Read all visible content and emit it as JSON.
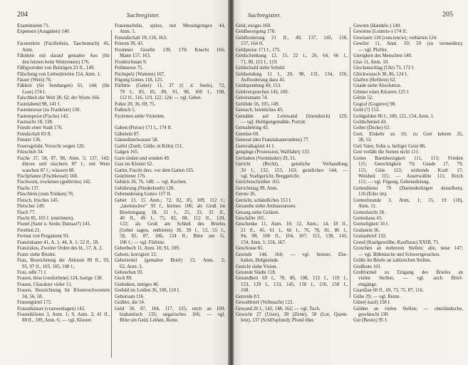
{
  "left_page": {
    "page_number": "204",
    "running_head": "Sachregister.",
    "columns": [
      [
        {
          "t": "Examinieren 71."
        },
        {
          "t": "Expensen (Ausgaben) 140."
        },
        {
          "t": "",
          "b": 1
        },
        {
          "t": "Facenetlein (Facilletlein, Taschentuch) 45,"
        },
        {
          "t": "Anm.",
          "i": 1
        },
        {
          "t": "Fähnlein mit darauf gemalter Sau (für"
        },
        {
          "t": "den letzten beim Wettrennen) 176.",
          "i": 1
        },
        {
          "t": "Fälligwerden von Beiträgen 23 ff., 149."
        },
        {
          "t": "Fälschung von Liebesbriefen 154, Anm. 1."
        },
        {
          "t": "Fässer (Wein) 76."
        },
        {
          "t": "Fäßlein (für Sendungen) 61, 144; (für"
        },
        {
          "t": "Lose) 174 f.",
          "i": 1
        },
        {
          "t": "Falschheit der Welt 38, 62; der Worte 166."
        },
        {
          "t": "Fastelabend 98, 141 f."
        },
        {
          "t": "Fastenmesse (zu Frankfurt) 130."
        },
        {
          "t": "Fastenspeise (Fische) 142."
        },
        {
          "t": "Fastnacht 18, 138."
        },
        {
          "t": "Feinde einer Stadt 176."
        },
        {
          "t": "Feindschaft 83 ff."
        },
        {
          "t": "Fenster 136."
        },
        {
          "t": "Feuersgefahr, Vorsicht wegen 126."
        },
        {
          "t": "Filzschuh 34."
        },
        {
          "t": "Fische 37, 58, 87, 98, Anm. 5; 137, 142;"
        },
        {
          "t": "dörren und räuchern 87 f.; mit Wein",
          "i": 1
        },
        {
          "t": "waschen 87 f.; wässern 88.",
          "i": 1
        },
        {
          "t": "Fischpfanne (Fischkessel) 168."
        },
        {
          "t": "Fischwerk, trockenes (gedörrtes) 142."
        },
        {
          "t": "Flachs 137."
        },
        {
          "t": "Fläschlein (zum Trinken) 76."
        },
        {
          "t": "Fleisch, frisches 145."
        },
        {
          "t": "Fleischer 149."
        },
        {
          "t": "Fluch 77."
        },
        {
          "t": "Flucht 85, 165 f. (entrinnen)."
        },
        {
          "t": "Flunel (Samt u. Seide; Damast?) 141."
        },
        {
          "t": "Forellen 21."
        },
        {
          "t": "Format von Pergament 93."
        },
        {
          "t": "Franziskaner 41, A. 1; 44, A. 1; 52 ff., 59."
        },
        {
          "t": "Franziskus, Zweiter Orden des hl., 57, A. 2."
        },
        {
          "t": "Frater siehe Bruder."
        },
        {
          "t": "Frau, Bezeichnung der Äbtissin 89 ff., 93,"
        },
        {
          "t": "95, 97 ff., 103, 105, 108 f.;",
          "i": 1
        },
        {
          "t": "Frau, edle 71 f."
        },
        {
          "t": "Frauen, böse (verdorbene) 124, lustige 138."
        },
        {
          "t": "Frauen, Charakter vieler 51."
        },
        {
          "t": "Frauen, Bezeichnung für Klosterschwestern"
        },
        {
          "t": "34, 56, 58.",
          "i": 1
        },
        {
          "t": "Frauengürtel 175."
        },
        {
          "t": "Frauenhäuser (vrauwenlagen) 142."
        },
        {
          "t": "Frauenklöster 3, Anm. 1; 9, Anm. 2; 41 ff.,"
        },
        {
          "t": "88 ff., 109, Anm. 6; — vgl. Kloster.",
          "i": 1
        }
      ],
      [
        {
          "t": "Frauenschuhe, spitze, mit Messingringen 44,"
        },
        {
          "t": "Anm. 1.",
          "i": 1
        },
        {
          "t": "Freundschaft 19, 116, 163."
        },
        {
          "t": "Frieren 39, 43."
        },
        {
          "t": "Frommer Geselle 139, 170; Knecht 166;"
        },
        {
          "t": "Mann 157, 163.",
          "i": 1
        },
        {
          "t": "Fronleichnam 9."
        },
        {
          "t": "Frühmesse 75."
        },
        {
          "t": "Fuchspelz (Wamme) 167."
        },
        {
          "t": "Fügung Gottes 118, 125."
        },
        {
          "t": "Fürbitte (Gebet) 11, 37 (f. d. Seele), 72,"
        },
        {
          "t": "79 f., 83, 85, 89, 91, 98, 100 f., 108,",
          "i": 1
        },
        {
          "t": "112 ff., 116, 119, 122, 124; — vgl. Gebet.",
          "i": 1
        },
        {
          "t": "Fuhre 20, 36, 69, 75."
        },
        {
          "t": "Fußtuch 5."
        },
        {
          "t": "Fyoletten siehe Violetten."
        },
        {
          "t": "",
          "b": 1
        },
        {
          "t": "Gaben (Preise) 171 f., 174 ff."
        },
        {
          "t": "Gäbelein 87."
        },
        {
          "t": "Gänsedistelwasser 58."
        },
        {
          "t": "Gaffel (Zunft, Gilde; in Köln) 151."
        },
        {
          "t": "Galgen 165."
        },
        {
          "t": "Garn sieden und winden 49."
        },
        {
          "t": "Gast im Kloster 62."
        },
        {
          "t": "Gattin, Furcht ders. vor dem Gatten 165."
        },
        {
          "t": "Geächteter 176."
        },
        {
          "t": "Gebäck 26, 76, 148; — vgl. Kuchen."
        },
        {
          "t": "Gebährung (Niederkunft) 128."
        },
        {
          "t": "Gebenedeiung Gottes 117 ff."
        },
        {
          "t": "Gebet 13, 15 Anm.; 72, 82, 85, 109, 112 f.;"
        },
        {
          "t": "„lateinisches“ 93 f., kleines 106; als Gruß im",
          "i": 1
        },
        {
          "t": "Briefeingang 18, 21 f., 25, 33, 35 ff.,",
          "i": 1
        },
        {
          "t": "40 ff., 49 f., 75, 82, 88, 112 ff., 120,",
          "i": 1
        },
        {
          "t": "122; als Gruß am Schluß des Briefes",
          "i": 1
        },
        {
          "t": "(Gebet sagen, entbieten) 36, 39 f., 53, 55 f.,",
          "i": 1
        },
        {
          "t": "58, 82, 87, 106, 124 ff.; Bitte um G.",
          "i": 1
        },
        {
          "t": "106 f.; — vgl. Fürbitte.",
          "i": 1
        },
        {
          "t": "Gebetbuch 11, Anm. 10; 91, 109."
        },
        {
          "t": "Gebete, korrigiert 13."
        },
        {
          "t": "Gebetzettel (gemalter Brief) 13, Anm. 2;"
        },
        {
          "t": "62, Anm. 3.",
          "i": 1
        },
        {
          "t": "Gebrechen 93."
        },
        {
          "t": "Geck 89."
        },
        {
          "t": "Gedenken, stetiges 46."
        },
        {
          "t": "Geduld im Leiden 36, 108, 110 f."
        },
        {
          "t": "Gehorsam 116."
        },
        {
          "t": "Geißler, die 54."
        },
        {
          "t": "Geld 50, 87, 104, 117, 135; reich an 100;"
        },
        {
          "t": "brabantisch 133; ungarisches 166; — vgl.",
          "i": 1
        },
        {
          "t": "Bitte um Geld, Leihen, Rente.",
          "i": 1
        }
      ]
    ]
  },
  "right_page": {
    "page_number": "205",
    "running_head": "Sachregister.",
    "columns": [
      [
        {
          "t": "Geld, ewiges 160."
        },
        {
          "t": "Geldbesorgung 178."
        },
        {
          "t": "Geldforderung 21 ff., 49, 137, 143, 150,"
        },
        {
          "t": "157, 164 ff.",
          "i": 1
        },
        {
          "t": "Geldpreise 171 f., 175."
        },
        {
          "t": "Geldschenkung 12, 15, 22 f., 26, 64, 66 f.,"
        },
        {
          "t": "71, 80, 113 f., 119.",
          "i": 1
        },
        {
          "t": "Geldschuld siehe Schuld."
        },
        {
          "t": "Geldsendung 11 f., 20, 98, 131, 134, 156;"
        },
        {
          "t": "Aufforderung dazu 41.",
          "i": 1
        },
        {
          "t": "Geldspendung 49, 153."
        },
        {
          "t": "Geldversprechen 143, 160."
        },
        {
          "t": "Geleitsmann 74."
        },
        {
          "t": "Gelübde 56, 105, 149."
        },
        {
          "t": "Gemach, heimliches 43."
        },
        {
          "t": "Gemälde auf Leinwand (linendoich) 129;"
        },
        {
          "t": "— vgl. Heiligengemälde, Porträt.",
          "i": 1
        },
        {
          "t": "Gemahelring 43."
        },
        {
          "t": "Gemüse 68."
        },
        {
          "t": "General (des Franziskanerordens) 77."
        },
        {
          "t": "Generalkapitel 41 f."
        },
        {
          "t": "genginge (Prozession, Wallfahrt) 133."
        },
        {
          "t": "Gerhaben (Vormünder) 29, 31."
        },
        {
          "t": "Gericht (Recht), geistliche Verhandlung"
        },
        {
          "t": "30 f., 132, 153, 163; geistliches 144; —",
          "i": 1
        },
        {
          "t": "vgl. Stadtgericht, Berggericht.",
          "i": 1
        },
        {
          "t": "Gerichtsschreiber 163."
        },
        {
          "t": "Gerichtstag 99, Anm."
        },
        {
          "t": "Gerste 26."
        },
        {
          "t": "Gerücht, schändliches 153 f."
        },
        {
          "t": "Gesandte siehe Ambassiatores."
        },
        {
          "t": "Gesang siehe Geläute."
        },
        {
          "t": "Geschäfte 165."
        },
        {
          "t": "Geschenke 11, Anm. 10; 12, Anm.; 14, 18 ff.,"
        },
        {
          "t": "21 ff., 45, 61 f., 66 f., 76, 78, 81, 86 f.,",
          "i": 1
        },
        {
          "t": "94, 98, 100 ff., 104, 107, 113, 138, 145,",
          "i": 1
        },
        {
          "t": "154, Anm. 1; 156, 167.",
          "i": 1
        },
        {
          "t": "Geschosse 81."
        },
        {
          "t": "Gesinde 144, 164; — vgl. breeter, Ehe-"
        },
        {
          "t": "halten, Hofgesinde.",
          "i": 1
        },
        {
          "t": "Gesicht siehe Vision."
        },
        {
          "t": "Gesunde Städte 118."
        },
        {
          "t": "Gesundheit 69 f., 78, 80, 108, 112 f., 119 f.,"
        },
        {
          "t": "123, 129 f., 133, 145, 150 f., 156, 158 f.,",
          "i": 1
        },
        {
          "t": "168.",
          "i": 1
        },
        {
          "t": "Getreide 8 f."
        },
        {
          "t": "Gewaltbrief (Vollmacht) 122."
        },
        {
          "t": "Gewand 26 f., 142, 148, 162; — vgl. Tuch."
        },
        {
          "t": "Gewicht 27 (Unze), 28 (Zentr), 58 (Lot, Quent-"
        },
        {
          "t": "lein), 137 (Schiffspfund); Pfund öber.",
          "i": 1
        }
      ],
      [
        {
          "t": "Gewinn (Handels-) 140."
        },
        {
          "t": "Gewinne (Lotterie-) 174 ff."
        },
        {
          "t": "Gewissen 118 (conciencie); verhärten 124."
        },
        {
          "t": "Gewürz 11, Anm. 10; 59 (zu vermeiden);"
        },
        {
          "t": "— vgl. Pfeffer.",
          "i": 1
        },
        {
          "t": "Gierigkeit des Menschen 140."
        },
        {
          "t": "Glas 11, Anm. 10."
        },
        {
          "t": "Glockenschlag (Uhr) 73, 172 f."
        },
        {
          "t": "Glückwunsch 38, 86, 124 f."
        },
        {
          "t": "Glaffen (Heftlein) 62."
        },
        {
          "t": "Gnade siehe Absolution."
        },
        {
          "t": "Gönner eines Klosters 125 f."
        },
        {
          "t": "Göttin 52."
        },
        {
          "t": "Gograf (Gogreve) 98."
        },
        {
          "t": "Gold (?) 153."
        },
        {
          "t": "Goldgulden 86 f., 100, 121, 154, Anm. 1."
        },
        {
          "t": "Goldschmied 43."
        },
        {
          "t": "Golter (Decke) 63."
        },
        {
          "t": "Gott, Einkehr zu 16; zu Gott kehren 35,"
        },
        {
          "t": "38, 53.",
          "i": 1
        },
        {
          "t": "Gott Vater, Sohn u. heiliger Geist 86."
        },
        {
          "t": "Gott verläßt die Seinen nicht 111."
        },
        {
          "t": "Gottes Barmherzigkeit 111, 113; Frieden"
        },
        {
          "t": "115; Gerechtigkeit 70; Gnade 17, 79,",
          "i": 1
        },
        {
          "t": "115; Güte 113; wirkende Kraft 17;",
          "i": 1
        },
        {
          "t": "Weisheit 115; — Auserwählte 111; Reich",
          "i": 1
        },
        {
          "t": "111; — vgl. Fügung, Gebenedeiung.",
          "i": 1
        },
        {
          "t": "Gottesdienst 79 (Darniederliegen desselben),"
        },
        {
          "t": "116 (Eifer im).",
          "i": 1
        },
        {
          "t": "Gottesfreunde 3, Anm. 1; 15, 19 (18),"
        },
        {
          "t": "Anm. 11.",
          "i": 1
        },
        {
          "t": "Gottesfurcht 38."
        },
        {
          "t": "Gotteshaus 43."
        },
        {
          "t": "Gottseligkeit 16 f."
        },
        {
          "t": "Grabstein 36."
        },
        {
          "t": "Gratiasbrief 132."
        },
        {
          "t": "Greed (Kaufgewölbe, Kaufhaus) XXIII, 75."
        },
        {
          "t": "Groschen an mehreren Stellen; alte, neue 147;"
        },
        {
          "t": "— vgl. Böhmische und Schwertgroschen.",
          "i": 1
        },
        {
          "t": "Grüße im Briefe an zahlreichen Stellen."
        },
        {
          "t": "Grußbote 101."
        },
        {
          "t": "Grußformel zu Eingang des Briefes an"
        },
        {
          "t": "vielen Stellen; — vgl. auch Brief-",
          "i": 1
        },
        {
          "t": "eingänge.",
          "i": 1
        },
        {
          "t": "Guardian 60 ff., 69, 73, 75, 87, 116."
        },
        {
          "t": "Gülte 29; — vgl. Rente."
        },
        {
          "t": "Güter(-kauf) 158 f."
        },
        {
          "t": "Gulden an vielen Stellen; — oberländische,"
        },
        {
          "t": "gewünscht 130.",
          "i": 1
        },
        {
          "t": "Gut (Besitz) 95 f."
        }
      ]
    ]
  }
}
